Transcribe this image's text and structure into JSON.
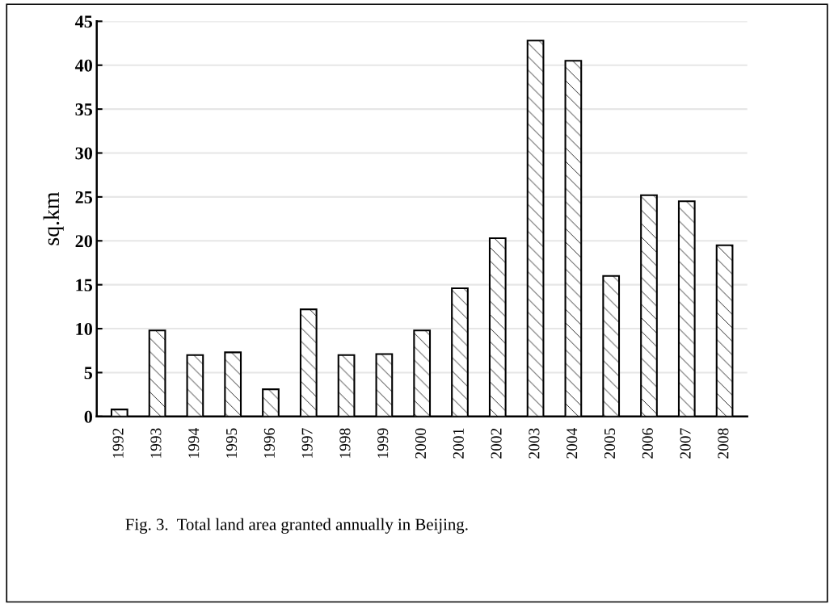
{
  "chart_data": {
    "type": "bar",
    "ylabel": "sq.km",
    "categories": [
      "1992",
      "1993",
      "1994",
      "1995",
      "1996",
      "1997",
      "1998",
      "1999",
      "2000",
      "2001",
      "2002",
      "2003",
      "2004",
      "2005",
      "2006",
      "2007",
      "2008"
    ],
    "values": [
      0.8,
      9.8,
      7.0,
      7.3,
      3.1,
      12.2,
      7.0,
      7.1,
      9.8,
      14.6,
      20.3,
      42.8,
      40.5,
      16.0,
      25.2,
      24.5,
      19.5
    ],
    "color": "#000000",
    "ylim": [
      0,
      45
    ],
    "yticks": [
      0,
      5,
      10,
      15,
      20,
      25,
      30,
      35,
      40,
      45
    ],
    "grid": "y",
    "annotations": [
      "Fig. 3.  Total land area granted annually in Beijing."
    ]
  }
}
